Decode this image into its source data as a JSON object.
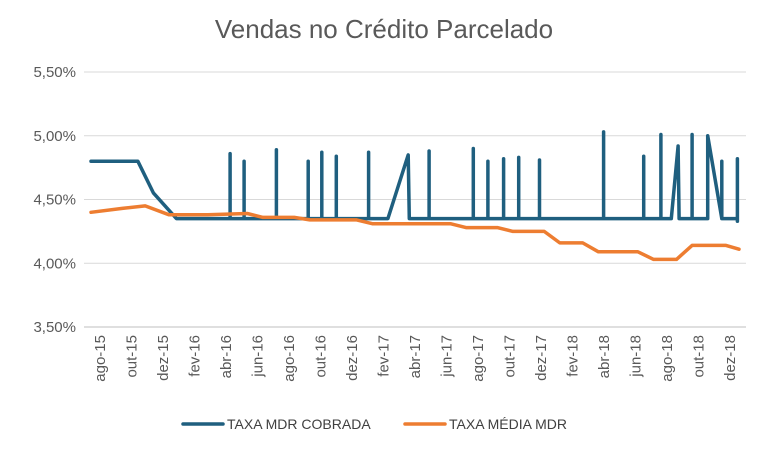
{
  "chart_data": {
    "type": "line",
    "title": "Vendas no Crédito Parcelado",
    "xlabel": "",
    "ylabel": "",
    "ylim": [
      0.035,
      0.055
    ],
    "y_ticks": [
      {
        "value": 0.035,
        "label": "3,50%"
      },
      {
        "value": 0.04,
        "label": "4,00%"
      },
      {
        "value": 0.045,
        "label": "4,50%"
      },
      {
        "value": 0.05,
        "label": "5,00%"
      },
      {
        "value": 0.055,
        "label": "5,50%"
      }
    ],
    "x_labels": [
      "ago-15",
      "out-15",
      "dez-15",
      "fev-16",
      "abr-16",
      "jun-16",
      "ago-16",
      "out-16",
      "dez-16",
      "fev-17",
      "abr-17",
      "jun-17",
      "ago-17",
      "out-17",
      "dez-17",
      "fev-18",
      "abr-18",
      "jun-18",
      "ago-18",
      "out-18",
      "dez-18"
    ],
    "grid": true,
    "legend_position": "bottom",
    "series": [
      {
        "name": "TAXA MDR COBRADA",
        "color": "#1f5f7f",
        "points": [
          [
            "2015-08-01",
            0.048
          ],
          [
            "2015-09-01",
            0.048
          ],
          [
            "2015-10-01",
            0.048
          ],
          [
            "2015-11-01",
            0.048
          ],
          [
            "2015-12-01",
            0.0455
          ],
          [
            "2016-01-15",
            0.0435
          ],
          [
            "2016-04-28",
            0.0435
          ],
          [
            "2016-04-28",
            0.0486
          ],
          [
            "2016-04-28",
            0.0435
          ],
          [
            "2016-05-25",
            0.0435
          ],
          [
            "2016-05-25",
            0.048
          ],
          [
            "2016-05-25",
            0.0435
          ],
          [
            "2016-07-27",
            0.0435
          ],
          [
            "2016-07-27",
            0.0489
          ],
          [
            "2016-07-27",
            0.0435
          ],
          [
            "2016-09-28",
            0.0435
          ],
          [
            "2016-09-28",
            0.048
          ],
          [
            "2016-09-28",
            0.0435
          ],
          [
            "2016-10-24",
            0.0435
          ],
          [
            "2016-10-24",
            0.0487
          ],
          [
            "2016-10-24",
            0.0435
          ],
          [
            "2016-11-22",
            0.0435
          ],
          [
            "2016-11-22",
            0.0484
          ],
          [
            "2016-11-22",
            0.0435
          ],
          [
            "2017-01-24",
            0.0435
          ],
          [
            "2017-01-24",
            0.0487
          ],
          [
            "2017-01-24",
            0.0435
          ],
          [
            "2017-03-01",
            0.0435
          ],
          [
            "2017-04-10",
            0.0485
          ],
          [
            "2017-04-12",
            0.0435
          ],
          [
            "2017-05-20",
            0.0435
          ],
          [
            "2017-05-20",
            0.0488
          ],
          [
            "2017-05-20",
            0.0435
          ],
          [
            "2017-08-15",
            0.0435
          ],
          [
            "2017-08-15",
            0.049
          ],
          [
            "2017-08-15",
            0.0435
          ],
          [
            "2017-09-13",
            0.0435
          ],
          [
            "2017-09-13",
            0.048
          ],
          [
            "2017-09-13",
            0.0435
          ],
          [
            "2017-10-13",
            0.0435
          ],
          [
            "2017-10-13",
            0.0482
          ],
          [
            "2017-10-13",
            0.0435
          ],
          [
            "2017-11-12",
            0.0435
          ],
          [
            "2017-11-12",
            0.0483
          ],
          [
            "2017-11-12",
            0.0435
          ],
          [
            "2017-12-22",
            0.0435
          ],
          [
            "2017-12-22",
            0.0481
          ],
          [
            "2017-12-22",
            0.0435
          ],
          [
            "2018-04-25",
            0.0435
          ],
          [
            "2018-04-25",
            0.0503
          ],
          [
            "2018-04-25",
            0.0435
          ],
          [
            "2018-07-12",
            0.0435
          ],
          [
            "2018-07-12",
            0.0484
          ],
          [
            "2018-07-12",
            0.0435
          ],
          [
            "2018-08-15",
            0.0435
          ],
          [
            "2018-08-15",
            0.0501
          ],
          [
            "2018-08-15",
            0.0435
          ],
          [
            "2018-09-05",
            0.0435
          ],
          [
            "2018-09-18",
            0.0492
          ],
          [
            "2018-09-20",
            0.0435
          ],
          [
            "2018-10-15",
            0.0435
          ],
          [
            "2018-10-15",
            0.0501
          ],
          [
            "2018-10-15",
            0.0435
          ],
          [
            "2018-11-15",
            0.0435
          ],
          [
            "2018-11-15",
            0.05
          ],
          [
            "2018-12-12",
            0.0435
          ],
          [
            "2018-12-12",
            0.048
          ],
          [
            "2018-12-12",
            0.0435
          ],
          [
            "2019-01-12",
            0.0435
          ],
          [
            "2019-01-12",
            0.0482
          ],
          [
            "2019-01-12",
            0.0433
          ]
        ]
      },
      {
        "name": "TAXA MÉDIA MDR",
        "color": "#ed7d31",
        "points": [
          [
            "2015-08-01",
            0.044
          ],
          [
            "2015-10-01",
            0.0443
          ],
          [
            "2015-11-15",
            0.0445
          ],
          [
            "2016-01-01",
            0.0438
          ],
          [
            "2016-03-15",
            0.0438
          ],
          [
            "2016-06-01",
            0.0439
          ],
          [
            "2016-07-01",
            0.0436
          ],
          [
            "2016-09-01",
            0.0436
          ],
          [
            "2016-10-01",
            0.0434
          ],
          [
            "2017-01-01",
            0.0434
          ],
          [
            "2017-02-01",
            0.0431
          ],
          [
            "2017-07-01",
            0.0431
          ],
          [
            "2017-08-01",
            0.0428
          ],
          [
            "2017-10-01",
            0.0428
          ],
          [
            "2017-11-01",
            0.0425
          ],
          [
            "2018-01-01",
            0.0425
          ],
          [
            "2018-02-01",
            0.0416
          ],
          [
            "2018-03-15",
            0.0416
          ],
          [
            "2018-04-15",
            0.0409
          ],
          [
            "2018-07-01",
            0.0409
          ],
          [
            "2018-08-01",
            0.0403
          ],
          [
            "2018-09-15",
            0.0403
          ],
          [
            "2018-10-15",
            0.0414
          ],
          [
            "2018-12-20",
            0.0414
          ],
          [
            "2019-01-15",
            0.0411
          ]
        ]
      }
    ]
  }
}
